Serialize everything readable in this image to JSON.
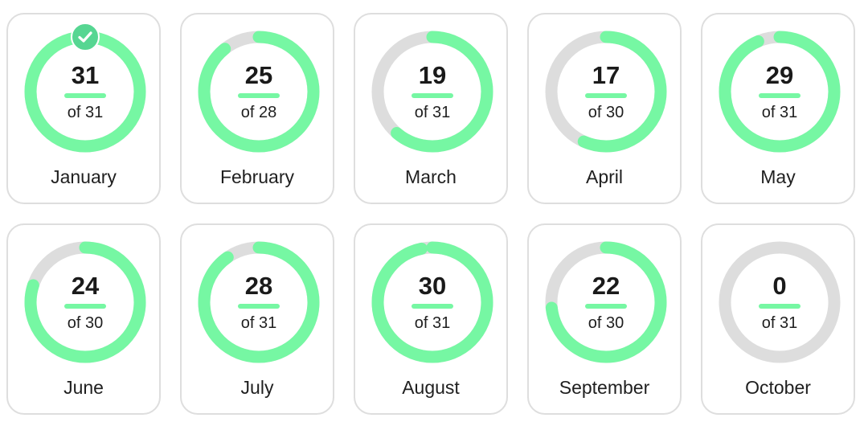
{
  "colors": {
    "ring_fill": "#76f7a3",
    "ring_track": "#dddddd",
    "check_badge": "#56d692",
    "card_border": "#dedede"
  },
  "months": [
    {
      "name": "January",
      "count": "31",
      "of_label": "of 31",
      "completed": 31,
      "total": 31,
      "check_icon": "checkmark-icon"
    },
    {
      "name": "February",
      "count": "25",
      "of_label": "of 28",
      "completed": 25,
      "total": 28
    },
    {
      "name": "March",
      "count": "19",
      "of_label": "of 31",
      "completed": 19,
      "total": 31
    },
    {
      "name": "April",
      "count": "17",
      "of_label": "of 30",
      "completed": 17,
      "total": 30
    },
    {
      "name": "May",
      "count": "29",
      "of_label": "of 31",
      "completed": 29,
      "total": 31
    },
    {
      "name": "June",
      "count": "24",
      "of_label": "of 30",
      "completed": 24,
      "total": 30
    },
    {
      "name": "July",
      "count": "28",
      "of_label": "of 31",
      "completed": 28,
      "total": 31
    },
    {
      "name": "August",
      "count": "30",
      "of_label": "of 31",
      "completed": 30,
      "total": 31
    },
    {
      "name": "September",
      "count": "22",
      "of_label": "of 30",
      "completed": 22,
      "total": 30
    },
    {
      "name": "October",
      "count": "0",
      "of_label": "of 31",
      "completed": 0,
      "total": 31
    }
  ]
}
